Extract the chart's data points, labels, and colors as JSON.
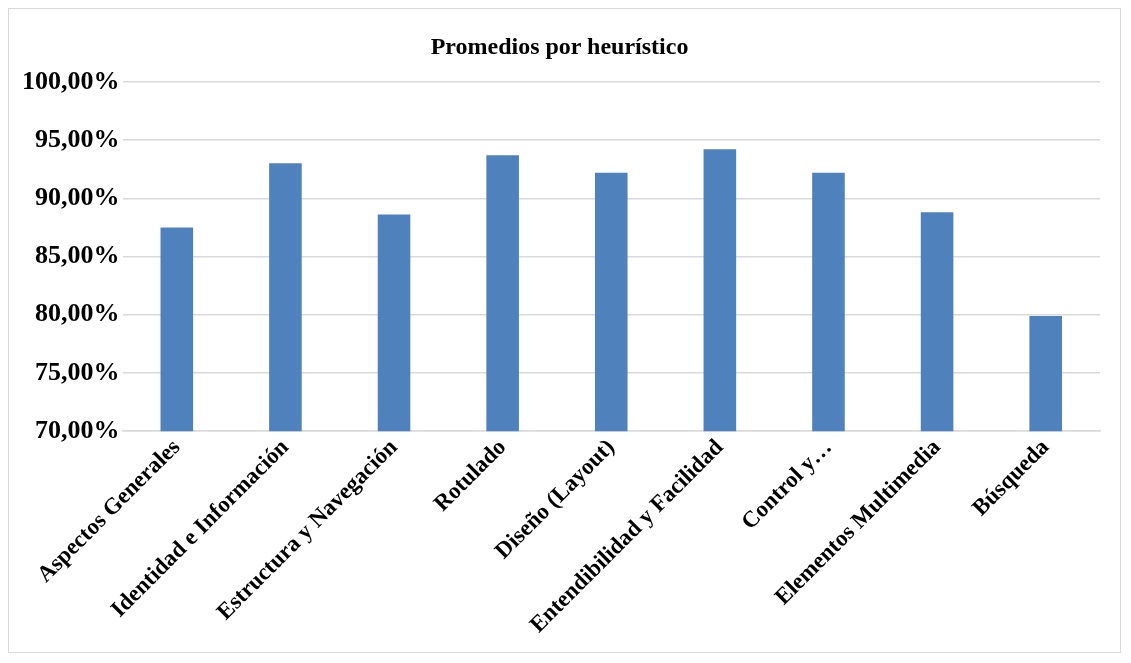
{
  "chart_data": {
    "type": "bar",
    "title": "Promedios por heurístico",
    "categories": [
      "Aspectos Generales",
      "Identidad e Información",
      "Estructura y Navegación",
      "Rotulado",
      "Diseño (Layout)",
      "Entendibilidad y Facilidad",
      "Control y…",
      "Elementos Multimedia",
      "Búsqueda"
    ],
    "values": [
      87.5,
      93.0,
      88.6,
      93.7,
      92.2,
      94.2,
      92.2,
      88.8,
      79.9
    ],
    "color": "#4f81bd",
    "ylim": [
      70,
      100
    ],
    "yticks": [
      {
        "value": 70,
        "label": "70,00%"
      },
      {
        "value": 75,
        "label": "75,00%"
      },
      {
        "value": 80,
        "label": "80,00%"
      },
      {
        "value": 85,
        "label": "85,00%"
      },
      {
        "value": 90,
        "label": "90,00%"
      },
      {
        "value": 95,
        "label": "95,00%"
      },
      {
        "value": 100,
        "label": "100,00%"
      }
    ],
    "grid": "y",
    "legend": false
  }
}
